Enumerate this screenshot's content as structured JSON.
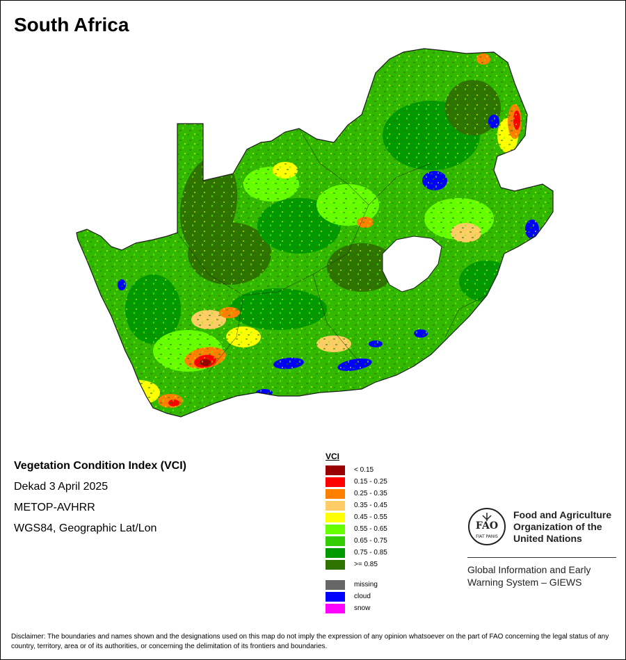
{
  "title": "South Africa",
  "map_info": {
    "index_name": "Vegetation Condition Index (VCI)",
    "period": "Dekad 3 April 2025",
    "sensor": "METOP-AVHRR",
    "projection": "WGS84, Geographic Lat/Lon"
  },
  "legend": {
    "title": "VCI",
    "classes": [
      {
        "label": "< 0.15",
        "color": "#990000"
      },
      {
        "label": "0.15 - 0.25",
        "color": "#ff0000"
      },
      {
        "label": "0.25 - 0.35",
        "color": "#ff8000"
      },
      {
        "label": "0.35 - 0.45",
        "color": "#ffcc66"
      },
      {
        "label": "0.45 - 0.55",
        "color": "#ffff00"
      },
      {
        "label": "0.55 - 0.65",
        "color": "#66ff00"
      },
      {
        "label": "0.65 - 0.75",
        "color": "#33cc00"
      },
      {
        "label": "0.75 - 0.85",
        "color": "#009900"
      },
      {
        "label": ">= 0.85",
        "color": "#2e7300"
      }
    ],
    "other": [
      {
        "label": "missing",
        "color": "#666666"
      },
      {
        "label": "cloud",
        "color": "#0000ff"
      },
      {
        "label": "snow",
        "color": "#ff00ff"
      }
    ]
  },
  "fao": {
    "logo_letters": "FAO",
    "logo_motto": "FIAT PANIS",
    "org_name": "Food and Agriculture Organization of the United Nations",
    "system_name": "Global Information and Early Warning System – GIEWS"
  },
  "disclaimer": "Disclaimer: The boundaries and names shown and the designations used on this map do not imply the expression of any opinion whatsoever on the part of FAO concerning the legal status of any country, territory, area or of its authorities, or concerning the delimitation of its frontiers and boundaries.",
  "map_colors": {
    "base": "#33b800",
    "dense": "#2e7300",
    "forest": "#009900",
    "light": "#66ff00",
    "moderate": "#ffff00",
    "low": "#ffcc66",
    "poor": "#ff8000",
    "very_poor": "#ff0000",
    "extreme": "#990000",
    "cloud": "#0000ff",
    "hole": "#ffffff",
    "border": "#1a1a1a"
  }
}
